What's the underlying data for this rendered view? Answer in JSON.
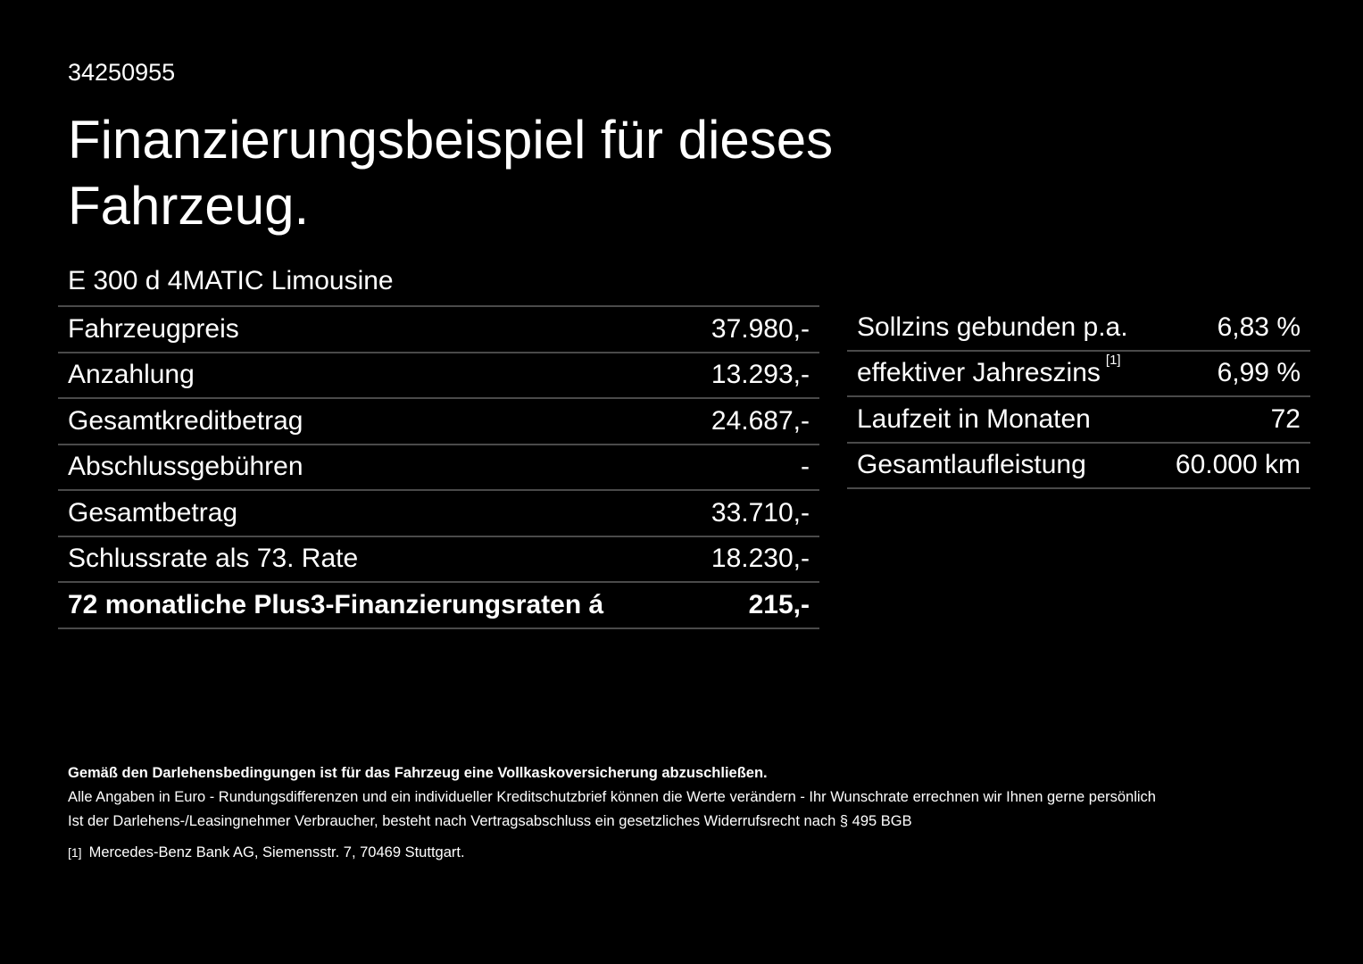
{
  "offer_id": "34250955",
  "title": "Finanzierungsbeispiel für dieses Fahrzeug.",
  "model": "E 300 d 4MATIC Limousine",
  "left_table": [
    {
      "label": "Fahrzeugpreis",
      "value": "37.980,-"
    },
    {
      "label": "Anzahlung",
      "value": "13.293,-"
    },
    {
      "label": "Gesamtkreditbetrag",
      "value": "24.687,-"
    },
    {
      "label": "Abschlussgebühren",
      "value": "-"
    },
    {
      "label": "Gesamtbetrag",
      "value": "33.710,-"
    },
    {
      "label": "Schlussrate als 73. Rate",
      "value": "18.230,-"
    },
    {
      "label": "72 monatliche Plus3-Finanzierungsraten á",
      "value": "215,-"
    }
  ],
  "right_table": [
    {
      "label": "Sollzins gebunden p.a.",
      "value": "6,83 %"
    },
    {
      "label": "effektiver Jahreszins",
      "footnote": "[1]",
      "value": "6,99 %"
    },
    {
      "label": "Laufzeit in Monaten",
      "value": "72"
    },
    {
      "label": "Gesamtlaufleistung",
      "value": "60.000 km"
    }
  ],
  "notes": {
    "insurance": "Gemäß den Darlehensbedingungen ist für das Fahrzeug eine Vollkaskoversicherung abzuschließen.",
    "line1": "Alle Angaben in Euro - Rundungsdifferenzen und ein individueller Kreditschutzbrief können die Werte verändern - Ihr Wunschrate errechnen wir Ihnen gerne persönlich",
    "line2": "Ist der Darlehens-/Leasingnehmer Verbraucher, besteht nach Vertragsabschluss ein gesetzliches Widerrufsrecht nach § 495 BGB",
    "footnote_mark": "[1]",
    "footnote_text": "Mercedes-Benz Bank AG, Siemensstr. 7, 70469 Stuttgart."
  }
}
